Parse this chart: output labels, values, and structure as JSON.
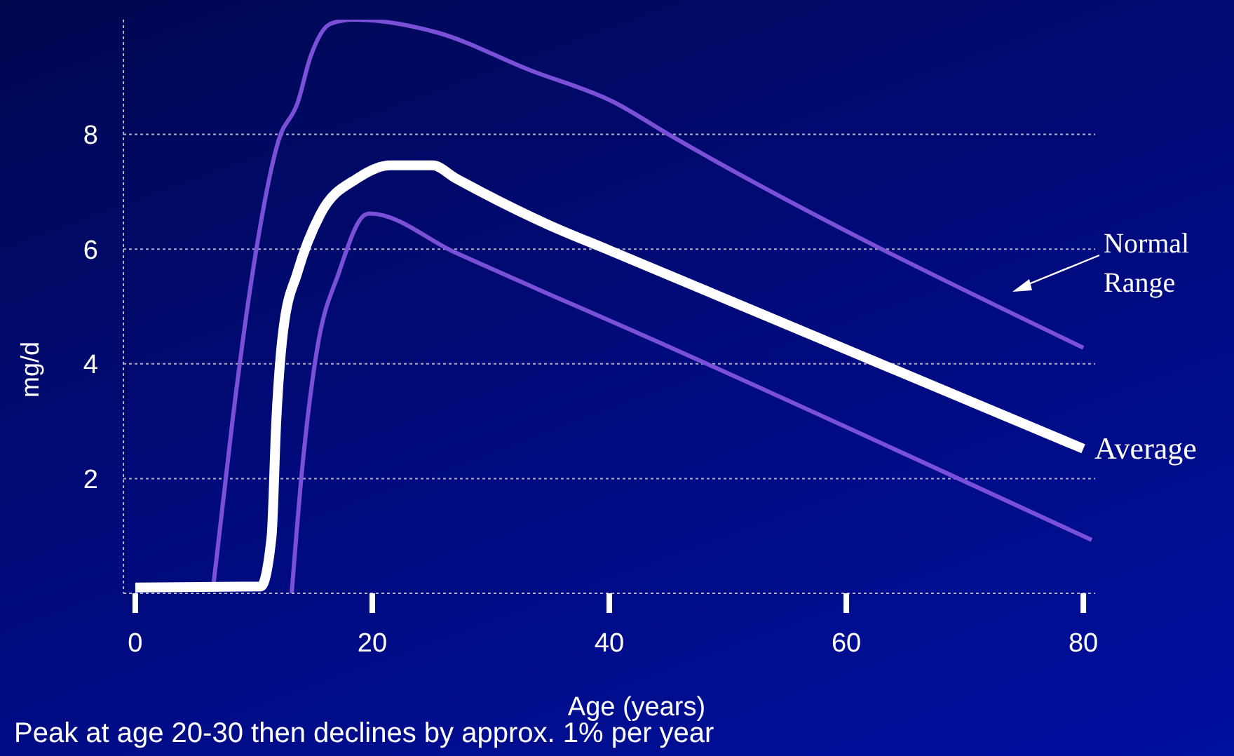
{
  "chart_data": {
    "type": "line",
    "xlabel": "Age (years)",
    "ylabel": "mg/d",
    "annotations": [
      "Normal Range",
      "Peak at age 20-30 then declines by approx. 1% per year"
    ],
    "xlim": [
      -1,
      81
    ],
    "ylim": [
      0,
      10
    ],
    "xticks": [
      0,
      20,
      40,
      60,
      80
    ],
    "yticks": [
      {
        "value": 0,
        "label": null
      },
      2,
      4,
      6,
      8
    ],
    "grid": "y",
    "marker": "none",
    "line_style": "solid",
    "series": [
      {
        "color": "#7b50d8",
        "x": [
          6.6,
          8.2,
          9.8,
          12.1,
          13.7,
          14.8,
          16.5,
          18.4,
          25.4,
          33.3,
          40.4,
          45,
          80
        ],
        "values": [
          0.15,
          3.0,
          5.45,
          7.9,
          8.55,
          9.36,
          9.93,
          10.0,
          9.78,
          9.12,
          8.56,
          8.0,
          4.28
        ]
      },
      {
        "name": "Average",
        "color": "#ffffff",
        "x": [
          0,
          10.6,
          11.5,
          11.9,
          12.5,
          13.7,
          15.6,
          18.8,
          21.5,
          25.1,
          27,
          34.8,
          40,
          80
        ],
        "values": [
          0.1,
          0.12,
          0.98,
          3.0,
          4.6,
          5.6,
          6.6,
          7.24,
          7.46,
          7.46,
          7.24,
          6.43,
          5.98,
          2.52
        ]
      },
      {
        "color": "#7b50d8",
        "x": [
          13.2,
          14.1,
          15.3,
          17.2,
          19.4,
          19.8,
          27,
          45,
          80.7
        ],
        "values": [
          0,
          2.2,
          4.2,
          5.6,
          6.6,
          6.62,
          5.94,
          4.3,
          0.93
        ]
      }
    ]
  }
}
